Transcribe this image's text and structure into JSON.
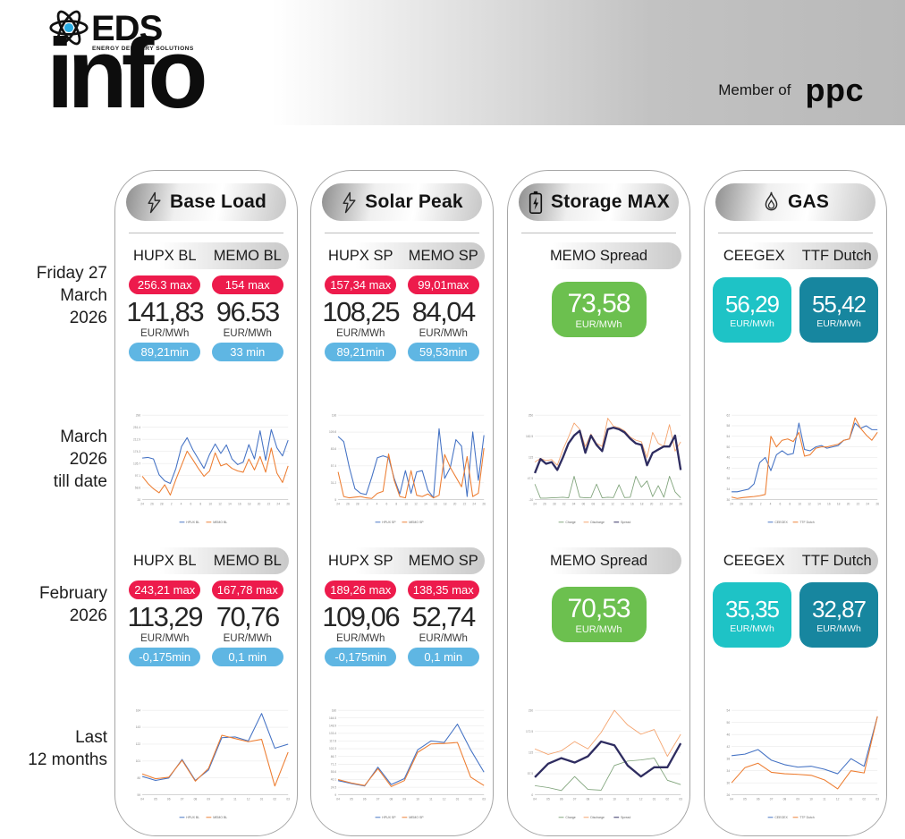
{
  "header": {
    "logo_text": "EDS",
    "logo_subtext": "ENERGY DELIVERY SOLUTIONS",
    "logo_big": "info",
    "member_of_label": "Member of",
    "member_of_brand": "ppc"
  },
  "icons": {
    "logo": "atom-icon",
    "base_load": "lightning-icon",
    "solar_peak": "lightning-icon",
    "storage_max": "battery-icon",
    "gas": "flame-icon"
  },
  "colors": {
    "max_pill_red": "#ED1B4C",
    "min_pill_blue": "#5FB6E3",
    "spread_green": "#6CC04F",
    "ceegex_teal": "#1EC3C6",
    "ttf_teal": "#17869F",
    "chart_blue": "#4472C4",
    "chart_orange": "#ED7D31",
    "chart_light_orange": "#F4A26B",
    "chart_green": "#7FA37A",
    "chart_navy": "#2E2C60",
    "header_gray": "#b9b9b9"
  },
  "row_labels": [
    {
      "lines": [
        "Friday 27",
        "March",
        "2026"
      ]
    },
    {
      "lines": [
        "March",
        "2026",
        "till date"
      ]
    },
    {
      "lines": [
        "February",
        "2026"
      ]
    },
    {
      "lines": [
        "Last",
        "12 months"
      ]
    }
  ],
  "columns": [
    {
      "title": "Base Load",
      "current": {
        "subheads": [
          "HUPX BL",
          "MEMO BL"
        ],
        "stats": [
          {
            "max": "256.3 max",
            "value": "141,83",
            "unit": "EUR/MWh",
            "min": "89,21min"
          },
          {
            "max": "154 max",
            "value": "96.53",
            "unit": "EUR/MWh",
            "min": "33 min"
          }
        ]
      },
      "february": {
        "subheads": [
          "HUPX BL",
          "MEMO BL"
        ],
        "stats": [
          {
            "max": "243,21 max",
            "value": "113,29",
            "unit": "EUR/MWh",
            "min": "-0,175min"
          },
          {
            "max": "167,78 max",
            "value": "70,76",
            "unit": "EUR/MWh",
            "min": "0,1 min"
          }
        ]
      }
    },
    {
      "title": "Solar Peak",
      "current": {
        "subheads": [
          "HUPX SP",
          "MEMO SP"
        ],
        "stats": [
          {
            "max": "157,34 max",
            "value": "108,25",
            "unit": "EUR/MWh",
            "min": "89,21min"
          },
          {
            "max": "99,01max",
            "value": "84,04",
            "unit": "EUR/MWh",
            "min": "59,53min"
          }
        ]
      },
      "february": {
        "subheads": [
          "HUPX SP",
          "MEMO SP"
        ],
        "stats": [
          {
            "max": "189,26 max",
            "value": "109,06",
            "unit": "EUR/MWh",
            "min": "-0,175min"
          },
          {
            "max": "138,35 max",
            "value": "52,74",
            "unit": "EUR/MWh",
            "min": "0,1 min"
          }
        ]
      }
    },
    {
      "title": "Storage MAX",
      "current": {
        "subheads": [
          "MEMO Spread"
        ],
        "stats": [
          {
            "value": "73,58",
            "unit": "EUR/MWh"
          }
        ]
      },
      "february": {
        "subheads": [
          "MEMO Spread"
        ],
        "stats": [
          {
            "value": "70,53",
            "unit": "EUR/MWh"
          }
        ]
      }
    },
    {
      "title": "GAS",
      "current": {
        "subheads": [
          "CEEGEX",
          "TTF Dutch"
        ],
        "stats": [
          {
            "value": "56,29",
            "unit": "EUR/MWh"
          },
          {
            "value": "55,42",
            "unit": "EUR/MWh"
          }
        ]
      },
      "february": {
        "subheads": [
          "CEEGEX",
          "TTF Dutch"
        ],
        "stats": [
          {
            "value": "35,35",
            "unit": "EUR/MWh"
          },
          {
            "value": "32,87",
            "unit": "EUR/MWh"
          }
        ]
      }
    }
  ],
  "chart_data": [
    {
      "name": "base-load-march-till-date",
      "type": "line",
      "categories": [
        "24",
        "26",
        "28",
        "2",
        "4",
        "6",
        "8",
        "10",
        "12",
        "14",
        "16",
        "18",
        "20",
        "22",
        "24",
        "26"
      ],
      "yticks": [
        20,
        58.6,
        97.1,
        135.7,
        174.3,
        212.9,
        251.4,
        290
      ],
      "legend_position": "bottom",
      "grid": true,
      "series": [
        {
          "name": "HPUX BL",
          "color": "#4472C4",
          "width": 1.1,
          "values": [
            153,
            155,
            150,
            100,
            80,
            72,
            120,
            190,
            218,
            180,
            150,
            120,
            165,
            198,
            168,
            195,
            150,
            132,
            140,
            196,
            150,
            240,
            146,
            244,
            186,
            160,
            210
          ]
        },
        {
          "name": "MEMO BL",
          "color": "#ED7D31",
          "width": 1.1,
          "values": [
            95,
            72,
            55,
            42,
            68,
            35,
            85,
            130,
            175,
            148,
            120,
            95,
            112,
            170,
            128,
            135,
            120,
            112,
            108,
            150,
            115,
            158,
            108,
            185,
            105,
            75,
            128
          ]
        }
      ]
    },
    {
      "name": "solar-peak-march-till-date",
      "type": "line",
      "categories": [
        "24",
        "26",
        "28",
        "2",
        "4",
        "6",
        "8",
        "10",
        "12",
        "14",
        "16",
        "18",
        "20",
        "22",
        "24",
        "26"
      ],
      "yticks": [
        5,
        31.2,
        57.4,
        83.6,
        109.8,
        136
      ],
      "legend_position": "bottom",
      "grid": true,
      "series": [
        {
          "name": "HPUX SP",
          "color": "#4472C4",
          "width": 1.1,
          "values": [
            103,
            95,
            55,
            22,
            15,
            13,
            40,
            70,
            73,
            70,
            38,
            14,
            50,
            15,
            48,
            50,
            20,
            8,
            115,
            38,
            55,
            98,
            88,
            10,
            110,
            35,
            105
          ]
        },
        {
          "name": "MEMO SP",
          "color": "#ED7D31",
          "width": 1.1,
          "values": [
            48,
            10,
            8,
            9,
            10,
            8,
            7,
            15,
            18,
            76,
            35,
            10,
            8,
            50,
            12,
            10,
            14,
            8,
            12,
            75,
            55,
            40,
            25,
            72,
            10,
            15,
            85
          ]
        }
      ]
    },
    {
      "name": "storage-max-march-till-date",
      "type": "line",
      "categories": [
        "24",
        "26",
        "28",
        "02",
        "04",
        "06",
        "08",
        "10",
        "12",
        "14",
        "16",
        "18",
        "20",
        "22",
        "24",
        "26"
      ],
      "yticks": [
        -20,
        47.5,
        115,
        182.5,
        250
      ],
      "legend_position": "bottom",
      "grid": true,
      "series": [
        {
          "name": "Charge",
          "color": "#7FA37A",
          "width": 0.9,
          "values": [
            30,
            -15,
            -15,
            -14,
            -13,
            -12,
            -14,
            55,
            -12,
            -14,
            -13,
            30,
            -14,
            -12,
            -13,
            28,
            -13,
            -12,
            55,
            20,
            40,
            -10,
            25,
            -12,
            55,
            5,
            -14
          ]
        },
        {
          "name": "Discharge",
          "color": "#F4A26B",
          "width": 0.9,
          "values": [
            100,
            112,
            105,
            108,
            90,
            140,
            180,
            225,
            205,
            150,
            190,
            160,
            150,
            240,
            215,
            210,
            200,
            180,
            170,
            165,
            115,
            195,
            160,
            150,
            220,
            135,
            165
          ]
        },
        {
          "name": "Spread",
          "color": "#2E2C60",
          "width": 2.4,
          "values": [
            65,
            110,
            95,
            100,
            75,
            115,
            160,
            185,
            200,
            130,
            185,
            155,
            135,
            205,
            210,
            205,
            195,
            175,
            160,
            155,
            90,
            130,
            140,
            150,
            150,
            185,
            75
          ]
        }
      ]
    },
    {
      "name": "gas-march-till-date",
      "type": "line",
      "categories": [
        "24",
        "26",
        "28",
        "2",
        "4",
        "6",
        "8",
        "10",
        "12",
        "14",
        "16",
        "18",
        "20",
        "22",
        "24",
        "26"
      ],
      "yticks": [
        30,
        34,
        38,
        42,
        46,
        50,
        54,
        58,
        62
      ],
      "legend_position": "bottom",
      "grid": true,
      "series": [
        {
          "name": "CEEGEX",
          "color": "#4472C4",
          "width": 1.1,
          "values": [
            33,
            33,
            33.5,
            34,
            36,
            44,
            46,
            41,
            47,
            48.5,
            47,
            47.5,
            59,
            49,
            48.5,
            50,
            50.5,
            49.5,
            50,
            50.5,
            52.5,
            53,
            59,
            57,
            58,
            56.5,
            56.5
          ]
        },
        {
          "name": "TTF Dutch",
          "color": "#ED7D31",
          "width": 1.1,
          "values": [
            31,
            30.5,
            30.8,
            31,
            31.2,
            31.5,
            32,
            54,
            50,
            52.5,
            53,
            52,
            55.5,
            46.5,
            47,
            49.5,
            50,
            50,
            50.5,
            51,
            52.5,
            53,
            61,
            57,
            54.5,
            52.5,
            55.5
          ]
        }
      ]
    },
    {
      "name": "base-load-last-12-months",
      "type": "line",
      "categories": [
        "04",
        "05",
        "06",
        "07",
        "08",
        "09",
        "10",
        "11",
        "12",
        "01",
        "02",
        "03"
      ],
      "yticks": [
        59,
        80,
        101,
        122,
        143,
        164
      ],
      "legend_position": "bottom",
      "grid": true,
      "series": [
        {
          "name": "HPUX BL",
          "color": "#4472C4",
          "width": 1.1,
          "values": [
            82,
            77,
            80,
            103,
            77,
            90,
            130,
            131,
            126,
            160,
            117,
            122
          ]
        },
        {
          "name": "MEMO BL",
          "color": "#ED7D31",
          "width": 1.1,
          "values": [
            85,
            79,
            81,
            102,
            76,
            92,
            133,
            129,
            125,
            128,
            70,
            112
          ]
        }
      ]
    },
    {
      "name": "solar-peak-last-12-months",
      "type": "line",
      "categories": [
        "04",
        "05",
        "06",
        "07",
        "08",
        "09",
        "10",
        "11",
        "12",
        "01",
        "02",
        "03"
      ],
      "yticks": [
        9,
        24.5,
        40.1,
        55.6,
        71.2,
        86.7,
        102.3,
        117.8,
        133.4,
        148.9,
        164.5,
        180
      ],
      "legend_position": "bottom",
      "grid": true,
      "series": [
        {
          "name": "HPUX SP",
          "color": "#4472C4",
          "width": 1.1,
          "values": [
            38,
            32,
            27,
            65,
            30,
            42,
            100,
            118,
            115,
            152,
            100,
            55
          ]
        },
        {
          "name": "MEMO SP",
          "color": "#ED7D31",
          "width": 1.1,
          "values": [
            40,
            33,
            28,
            62,
            26,
            38,
            95,
            112,
            113,
            115,
            45,
            28
          ]
        }
      ]
    },
    {
      "name": "storage-max-last-12-months",
      "type": "line",
      "categories": [
        "04",
        "05",
        "06",
        "07",
        "08",
        "09",
        "10",
        "11",
        "12",
        "01",
        "02",
        "03"
      ],
      "yticks": [
        0,
        57.5,
        115,
        172.5,
        230
      ],
      "legend_position": "bottom",
      "grid": true,
      "series": [
        {
          "name": "Charge",
          "color": "#7FA37A",
          "width": 0.9,
          "values": [
            25,
            20,
            12,
            50,
            15,
            13,
            80,
            92,
            95,
            100,
            40,
            28
          ]
        },
        {
          "name": "Discharge",
          "color": "#F4A26B",
          "width": 0.9,
          "values": [
            125,
            110,
            120,
            145,
            125,
            170,
            230,
            190,
            165,
            178,
            105,
            165
          ]
        },
        {
          "name": "Spread",
          "color": "#2E2C60",
          "width": 2.4,
          "values": [
            48,
            85,
            100,
            88,
            105,
            145,
            135,
            80,
            50,
            75,
            75,
            140
          ]
        }
      ]
    },
    {
      "name": "gas-last-12-months",
      "type": "line",
      "categories": [
        "04",
        "05",
        "06",
        "07",
        "08",
        "09",
        "10",
        "11",
        "12",
        "01",
        "02",
        "03"
      ],
      "yticks": [
        26,
        30,
        34,
        38,
        42,
        46,
        50,
        54
      ],
      "legend_position": "bottom",
      "grid": true,
      "series": [
        {
          "name": "CEEGEX",
          "color": "#4472C4",
          "width": 1.1,
          "values": [
            39,
            39.5,
            41,
            37.5,
            36,
            35.2,
            35.5,
            34.5,
            33,
            38,
            35.5,
            52
          ]
        },
        {
          "name": "TTF Dutch",
          "color": "#ED7D31",
          "width": 1.1,
          "values": [
            30,
            35,
            36.5,
            33.5,
            33,
            32.8,
            32.5,
            31,
            28,
            34,
            33.3,
            52
          ]
        }
      ]
    }
  ]
}
